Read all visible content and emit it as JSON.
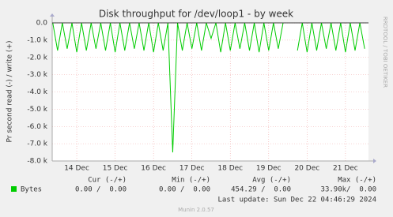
{
  "chart_data": {
    "type": "line",
    "title": "Disk throughput for /dev/loop1 - by week",
    "ylabel": "Pr second read (-) / write (+)",
    "watermark": "RRDTOOL / TOBI OETIKER",
    "footer": "Munin 2.0.57",
    "last_update": "Last update: Sun Dec 22 04:46:29 2024",
    "summary": {
      "headers": [
        "Cur (-/+)",
        "Min (-/+)",
        "Avg (-/+)",
        "Max (-/+)"
      ],
      "values": [
        "0.00 /  0.00",
        "0.00 /  0.00",
        "454.29 /  0.00",
        "33.90k/  0.00"
      ]
    },
    "x": [
      13.375,
      13.5,
      13.625,
      13.75,
      13.875,
      14,
      14.125,
      14.25,
      14.375,
      14.5,
      14.625,
      14.75,
      14.875,
      15,
      15.125,
      15.25,
      15.375,
      15.5,
      15.625,
      15.75,
      15.875,
      16,
      16.125,
      16.25,
      16.375,
      16.5,
      16.625,
      16.75,
      16.875,
      17,
      17.125,
      17.25,
      17.375,
      17.5,
      17.625,
      17.75,
      17.875,
      18,
      18.125,
      18.25,
      18.375,
      18.5,
      18.625,
      18.75,
      18.875,
      19,
      19.125,
      19.25,
      19.375,
      19.5,
      19.625,
      19.75,
      19.875,
      20,
      20.125,
      20.25,
      20.375,
      20.5,
      20.625,
      20.75,
      20.875,
      21,
      21.125,
      21.25,
      21.375,
      21.5
    ],
    "series": [
      {
        "name": "Bytes",
        "color": "#00cc00",
        "values": [
          0,
          -1600,
          0,
          -1500,
          0,
          -1700,
          0,
          -1600,
          0,
          -1500,
          0,
          -1600,
          0,
          -1700,
          0,
          -1600,
          0,
          -1500,
          0,
          -1600,
          0,
          -1700,
          0,
          -1600,
          0,
          -7500,
          0,
          -1600,
          0,
          -1500,
          0,
          -1600,
          0,
          -900,
          0,
          -1700,
          0,
          -1600,
          0,
          -1500,
          0,
          -1600,
          0,
          -1700,
          0,
          -1600,
          0,
          -1500,
          0,
          null,
          null,
          -1600,
          0,
          -1700,
          0,
          -1600,
          0,
          -1500,
          0,
          -1600,
          0,
          -1700,
          0,
          -1600,
          0,
          -1500
        ]
      }
    ],
    "xlim": [
      13.36,
      21.6
    ],
    "xticks": [
      {
        "value": 14,
        "label": "14 Dec"
      },
      {
        "value": 15,
        "label": "15 Dec"
      },
      {
        "value": 16,
        "label": "16 Dec"
      },
      {
        "value": 17,
        "label": "17 Dec"
      },
      {
        "value": 18,
        "label": "18 Dec"
      },
      {
        "value": 19,
        "label": "19 Dec"
      },
      {
        "value": 20,
        "label": "20 Dec"
      },
      {
        "value": 21,
        "label": "21 Dec"
      }
    ],
    "ylim": [
      -8000,
      0
    ],
    "yticks": [
      {
        "value": -8000,
        "label": "-8.0 k"
      },
      {
        "value": -7000,
        "label": "-7.0 k"
      },
      {
        "value": -6000,
        "label": "-6.0 k"
      },
      {
        "value": -5000,
        "label": "-5.0 k"
      },
      {
        "value": -4000,
        "label": "-4.0 k"
      },
      {
        "value": -3000,
        "label": "-3.0 k"
      },
      {
        "value": -2000,
        "label": "-2.0 k"
      },
      {
        "value": -1000,
        "label": "-1.0 k"
      },
      {
        "value": 0,
        "label": "0.0"
      }
    ],
    "grid": true
  }
}
